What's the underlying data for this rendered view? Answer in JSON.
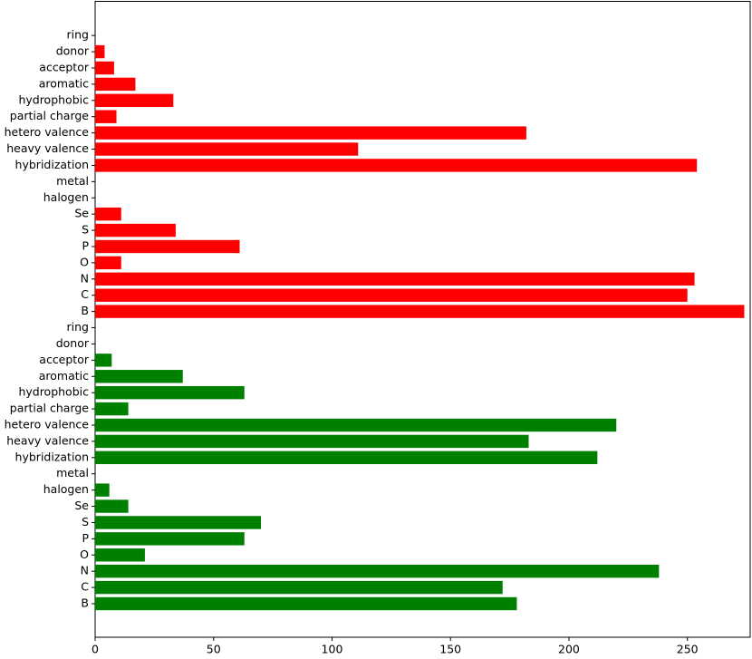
{
  "chart_data": {
    "type": "barh",
    "categories": [
      "B",
      "C",
      "N",
      "O",
      "P",
      "S",
      "Se",
      "halogen",
      "metal",
      "hybridization",
      "heavy valence",
      "hetero valence",
      "partial charge",
      "hydrophobic",
      "aromatic",
      "acceptor",
      "donor",
      "ring",
      "B",
      "C",
      "N",
      "O",
      "P",
      "S",
      "Se",
      "halogen",
      "metal",
      "hybridization",
      "heavy valence",
      "hetero valence",
      "partial charge",
      "hydrophobic",
      "aromatic",
      "acceptor",
      "donor",
      "ring"
    ],
    "values": [
      178,
      172,
      238,
      21,
      63,
      70,
      14,
      6,
      0,
      212,
      183,
      220,
      14,
      63,
      37,
      7,
      0,
      0,
      274,
      250,
      253,
      11,
      61,
      34,
      11,
      0,
      0,
      254,
      111,
      182,
      9,
      33,
      17,
      8,
      4,
      0
    ],
    "colors": [
      "green",
      "green",
      "green",
      "green",
      "green",
      "green",
      "green",
      "green",
      "green",
      "green",
      "green",
      "green",
      "green",
      "green",
      "green",
      "green",
      "green",
      "green",
      "red",
      "red",
      "red",
      "red",
      "red",
      "red",
      "red",
      "red",
      "red",
      "red",
      "red",
      "red",
      "red",
      "red",
      "red",
      "red",
      "red",
      "red"
    ],
    "xlim": [
      0,
      276.5
    ],
    "xticks": [
      0,
      50,
      100,
      150,
      200,
      250
    ]
  }
}
